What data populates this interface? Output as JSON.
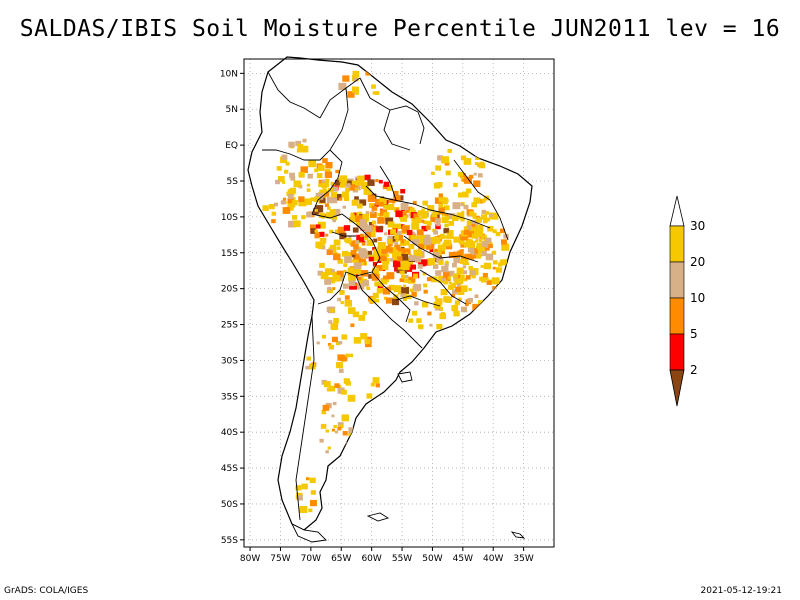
{
  "title": "SALDAS/IBIS Soil Moisture Percentile JUN2011 lev = 16",
  "map": {
    "region": "South America",
    "lat_labels": [
      "10N",
      "5N",
      "EQ",
      "5S",
      "10S",
      "15S",
      "20S",
      "25S",
      "30S",
      "35S",
      "40S",
      "45S",
      "50S",
      "55S"
    ],
    "lat_values": [
      10,
      5,
      0,
      -5,
      -10,
      -15,
      -20,
      -25,
      -30,
      -35,
      -40,
      -45,
      -50,
      -55
    ],
    "lon_labels": [
      "80W",
      "75W",
      "70W",
      "65W",
      "60W",
      "55W",
      "50W",
      "45W",
      "40W",
      "35W"
    ],
    "lon_values": [
      -80,
      -75,
      -70,
      -65,
      -60,
      -55,
      -50,
      -45,
      -40,
      -35
    ],
    "lon_range": [
      -81,
      -30
    ],
    "lat_range": [
      -56,
      12
    ],
    "grid": true
  },
  "legend": {
    "labels": [
      "30",
      "20",
      "10",
      "5",
      "2"
    ],
    "colors": {
      "above_30": "#ffffff",
      "20_30": "#f5c800",
      "10_20": "#d8b088",
      "5_10": "#ff8c00",
      "2_5": "#ff0000",
      "below_2": "#8b4513"
    }
  },
  "footer": {
    "credit": "GrADS: COLA/IGES",
    "timestamp": "2021-05-12-19:21"
  }
}
